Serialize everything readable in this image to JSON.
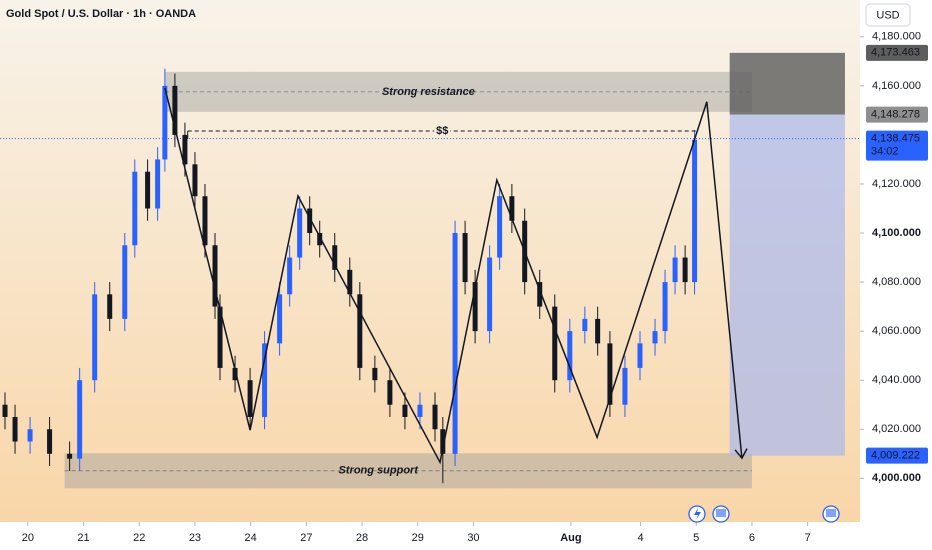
{
  "chart_data": {
    "type": "candlestick",
    "title": "Gold Spot / U.S. Dollar · 1h · OANDA",
    "currency": "USD",
    "up_color": "#2962ff",
    "down_color": "#131722",
    "xlim": [
      -0.5,
      14.94
    ],
    "ylim": [
      3983,
      4195
    ],
    "xticks": [
      {
        "value": 0,
        "label": "20"
      },
      {
        "value": 1,
        "label": "21"
      },
      {
        "value": 2,
        "label": "22"
      },
      {
        "value": 3,
        "label": "23"
      },
      {
        "value": 4,
        "label": "24"
      },
      {
        "value": 5,
        "label": "27"
      },
      {
        "value": 6,
        "label": "28"
      },
      {
        "value": 7,
        "label": "29"
      },
      {
        "value": 8,
        "label": "30"
      },
      {
        "value": 9.75,
        "label": "Aug"
      },
      {
        "value": 11,
        "label": "4"
      },
      {
        "value": 12,
        "label": "5"
      },
      {
        "value": 13,
        "label": "6"
      },
      {
        "value": 14,
        "label": "7"
      }
    ],
    "yticks": [
      {
        "value": 4180,
        "label": "4,180.000"
      },
      {
        "value": 4160,
        "label": "4,160.000"
      },
      {
        "value": 4120,
        "label": "4,120.000"
      },
      {
        "value": 4100,
        "label": "4,100.000"
      },
      {
        "value": 4080,
        "label": "4,080.000"
      },
      {
        "value": 4060,
        "label": "4,060.000"
      },
      {
        "value": 4040,
        "label": "4,040.000"
      },
      {
        "value": 4020,
        "label": "4,020.000"
      },
      {
        "value": 4000,
        "label": "4,000.000"
      }
    ],
    "x": [
      -0.41,
      -0.23,
      0.04,
      0.39,
      0.75,
      0.93,
      1.2,
      1.47,
      1.74,
      1.92,
      2.15,
      2.33,
      2.46,
      2.64,
      2.82,
      3.0,
      3.18,
      3.36,
      3.45,
      3.72,
      3.99,
      4.25,
      4.52,
      4.7,
      4.88,
      5.06,
      5.24,
      5.51,
      5.78,
      5.96,
      6.23,
      6.5,
      6.77,
      7.04,
      7.31,
      7.45,
      7.67,
      7.85,
      8.03,
      8.29,
      8.47,
      8.69,
      8.92,
      9.19,
      9.46,
      9.73,
      10.0,
      10.23,
      10.45,
      10.72,
      10.99,
      11.26,
      11.44,
      11.62,
      11.8,
      11.97
    ],
    "open": [
      4030,
      4025,
      4015,
      4020,
      4010,
      4008,
      4040,
      4075,
      4065,
      4095,
      4125,
      4110,
      4130,
      4160,
      4140,
      4128,
      4115,
      4095,
      4070,
      4045,
      4040,
      4025,
      4055,
      4075,
      4090,
      4110,
      4100,
      4095,
      4085,
      4075,
      4045,
      4040,
      4030,
      4025,
      4030,
      4020,
      4010,
      4100,
      4080,
      4060,
      4090,
      4115,
      4105,
      4080,
      4070,
      4040,
      4060,
      4065,
      4055,
      4030,
      4045,
      4055,
      4060,
      4080,
      4090,
      4080
    ],
    "high": [
      4035,
      4030,
      4025,
      4025,
      4015,
      4045,
      4080,
      4080,
      4100,
      4130,
      4130,
      4135,
      4167,
      4165,
      4145,
      4133,
      4120,
      4100,
      4075,
      4050,
      4045,
      4060,
      4080,
      4095,
      4115,
      4115,
      4105,
      4100,
      4090,
      4080,
      4050,
      4045,
      4035,
      4035,
      4035,
      4025,
      4105,
      4105,
      4085,
      4095,
      4120,
      4120,
      4110,
      4085,
      4075,
      4065,
      4070,
      4070,
      4060,
      4050,
      4060,
      4065,
      4085,
      4095,
      4095,
      4142
    ],
    "low": [
      4020,
      4010,
      4010,
      4005,
      4003,
      4003,
      4035,
      4060,
      4060,
      4090,
      4105,
      4105,
      4125,
      4135,
      4123,
      4110,
      4090,
      4065,
      4040,
      4035,
      4020,
      4020,
      4050,
      4070,
      4085,
      4095,
      4090,
      4080,
      4070,
      4040,
      4035,
      4025,
      4020,
      4020,
      4015,
      3998,
      4005,
      4075,
      4055,
      4055,
      4085,
      4100,
      4075,
      4065,
      4035,
      4035,
      4055,
      4050,
      4025,
      4025,
      4040,
      4050,
      4055,
      4075,
      4075,
      4075
    ],
    "close": [
      4025,
      4015,
      4020,
      4010,
      4008,
      4040,
      4075,
      4065,
      4095,
      4125,
      4110,
      4130,
      4160,
      4140,
      4128,
      4115,
      4095,
      4070,
      4045,
      4040,
      4025,
      4055,
      4075,
      4090,
      4110,
      4100,
      4095,
      4085,
      4075,
      4045,
      4040,
      4030,
      4025,
      4030,
      4020,
      4010,
      4100,
      4080,
      4060,
      4090,
      4115,
      4105,
      4080,
      4070,
      4040,
      4060,
      4065,
      4055,
      4030,
      4045,
      4055,
      4060,
      4080,
      4090,
      4080,
      4138
    ],
    "zones": [
      {
        "label": "Strong resistance",
        "x": [
          2.46,
          13.0
        ],
        "y": [
          4149.4,
          4165.7
        ]
      },
      {
        "label": "Strong support",
        "x": [
          0.66,
          13.0
        ],
        "y": [
          3995.9,
          4010.2
        ]
      }
    ],
    "pattern": {
      "x": [
        2.46,
        3.99,
        4.85,
        7.4,
        8.42,
        10.22,
        12.19,
        12.82
      ],
      "y": [
        4159.2,
        4019.6,
        4115.1,
        4006.5,
        4121.6,
        4016.7,
        4153.5,
        4008.2
      ]
    },
    "liquidity": {
      "label": "$$",
      "x": [
        2.87,
        12.01
      ],
      "y": 4141.6
    },
    "last_price": {
      "value": 4138.475,
      "label": "4,138.475",
      "countdown": "34:02"
    },
    "position": {
      "x": [
        12.6,
        14.67
      ],
      "stop": {
        "value": 4173.463,
        "label": "4,173.463"
      },
      "entry": {
        "value": 4148.278,
        "label": "4,148.278"
      },
      "target": {
        "value": 4009.222,
        "label": "4,009.222"
      }
    }
  }
}
